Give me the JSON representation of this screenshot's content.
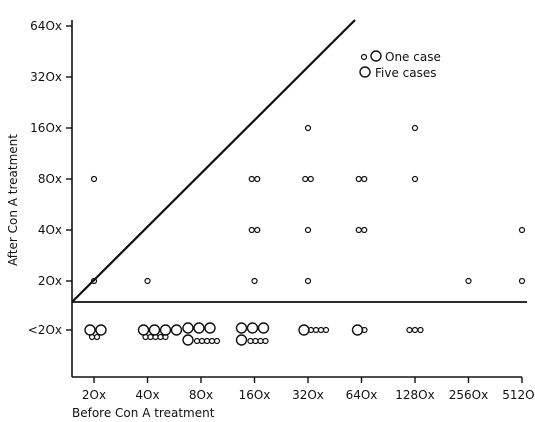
{
  "chart_data": {
    "type": "scatter",
    "xlabel": "Before Con A treatment",
    "ylabel": "After Con A treatment",
    "x_tick_labels": [
      "2Ox",
      "4Ox",
      "8Ox",
      "16Ox",
      "32Ox",
      "64Ox",
      "128Ox",
      "256Ox",
      "512Ox"
    ],
    "y_tick_labels": [
      "<2Ox",
      "2Ox",
      "4Ox",
      "8Ox",
      "16Ox",
      "32Ox",
      "64Ox"
    ],
    "x_scale": "log2",
    "y_scale": "log2 (with <20 category)",
    "legend": {
      "position": "top-right",
      "entries": [
        {
          "symbol": "small-circle",
          "label": "One case"
        },
        {
          "symbol": "large-circle",
          "label": "Five cases"
        }
      ]
    },
    "reference_line": {
      "description": "identity line y = x",
      "from": [
        10,
        10
      ],
      "to": [
        1280,
        640
      ]
    },
    "threshold_line": {
      "y": "<20 boundary"
    },
    "points": [
      {
        "x": "20",
        "y": "80",
        "large": 0,
        "small": 1
      },
      {
        "x": "20",
        "y": "20",
        "large": 0,
        "small": 1
      },
      {
        "x": "20",
        "y": "<20",
        "large": 2,
        "small": 2
      },
      {
        "x": "40",
        "y": "20",
        "large": 0,
        "small": 1
      },
      {
        "x": "40",
        "y": "<20",
        "large": 4,
        "small": 5
      },
      {
        "x": "80",
        "y": "<20",
        "large": 6,
        "small": 5
      },
      {
        "x": "160",
        "y": "80",
        "large": 0,
        "small": 2
      },
      {
        "x": "160",
        "y": "40",
        "large": 0,
        "small": 2
      },
      {
        "x": "160",
        "y": "20",
        "large": 0,
        "small": 1
      },
      {
        "x": "160",
        "y": "<20",
        "large": 6,
        "small": 4
      },
      {
        "x": "320",
        "y": "160",
        "large": 0,
        "small": 1
      },
      {
        "x": "320",
        "y": "80",
        "large": 0,
        "small": 2
      },
      {
        "x": "320",
        "y": "40",
        "large": 0,
        "small": 1
      },
      {
        "x": "320",
        "y": "20",
        "large": 0,
        "small": 1
      },
      {
        "x": "320",
        "y": "<20",
        "large": 1,
        "small": 4
      },
      {
        "x": "640",
        "y": "80",
        "large": 0,
        "small": 2
      },
      {
        "x": "640",
        "y": "40",
        "large": 0,
        "small": 2
      },
      {
        "x": "640",
        "y": "<20",
        "large": 1,
        "small": 1
      },
      {
        "x": "1280",
        "y": "160",
        "large": 0,
        "small": 1
      },
      {
        "x": "1280",
        "y": "80",
        "large": 0,
        "small": 1
      },
      {
        "x": "1280",
        "y": "<20",
        "large": 0,
        "small": 3
      },
      {
        "x": "2560",
        "y": "20",
        "large": 0,
        "small": 1
      },
      {
        "x": "5120",
        "y": "40",
        "large": 0,
        "small": 1
      },
      {
        "x": "5120",
        "y": "20",
        "large": 0,
        "small": 1
      }
    ],
    "grid": false
  }
}
